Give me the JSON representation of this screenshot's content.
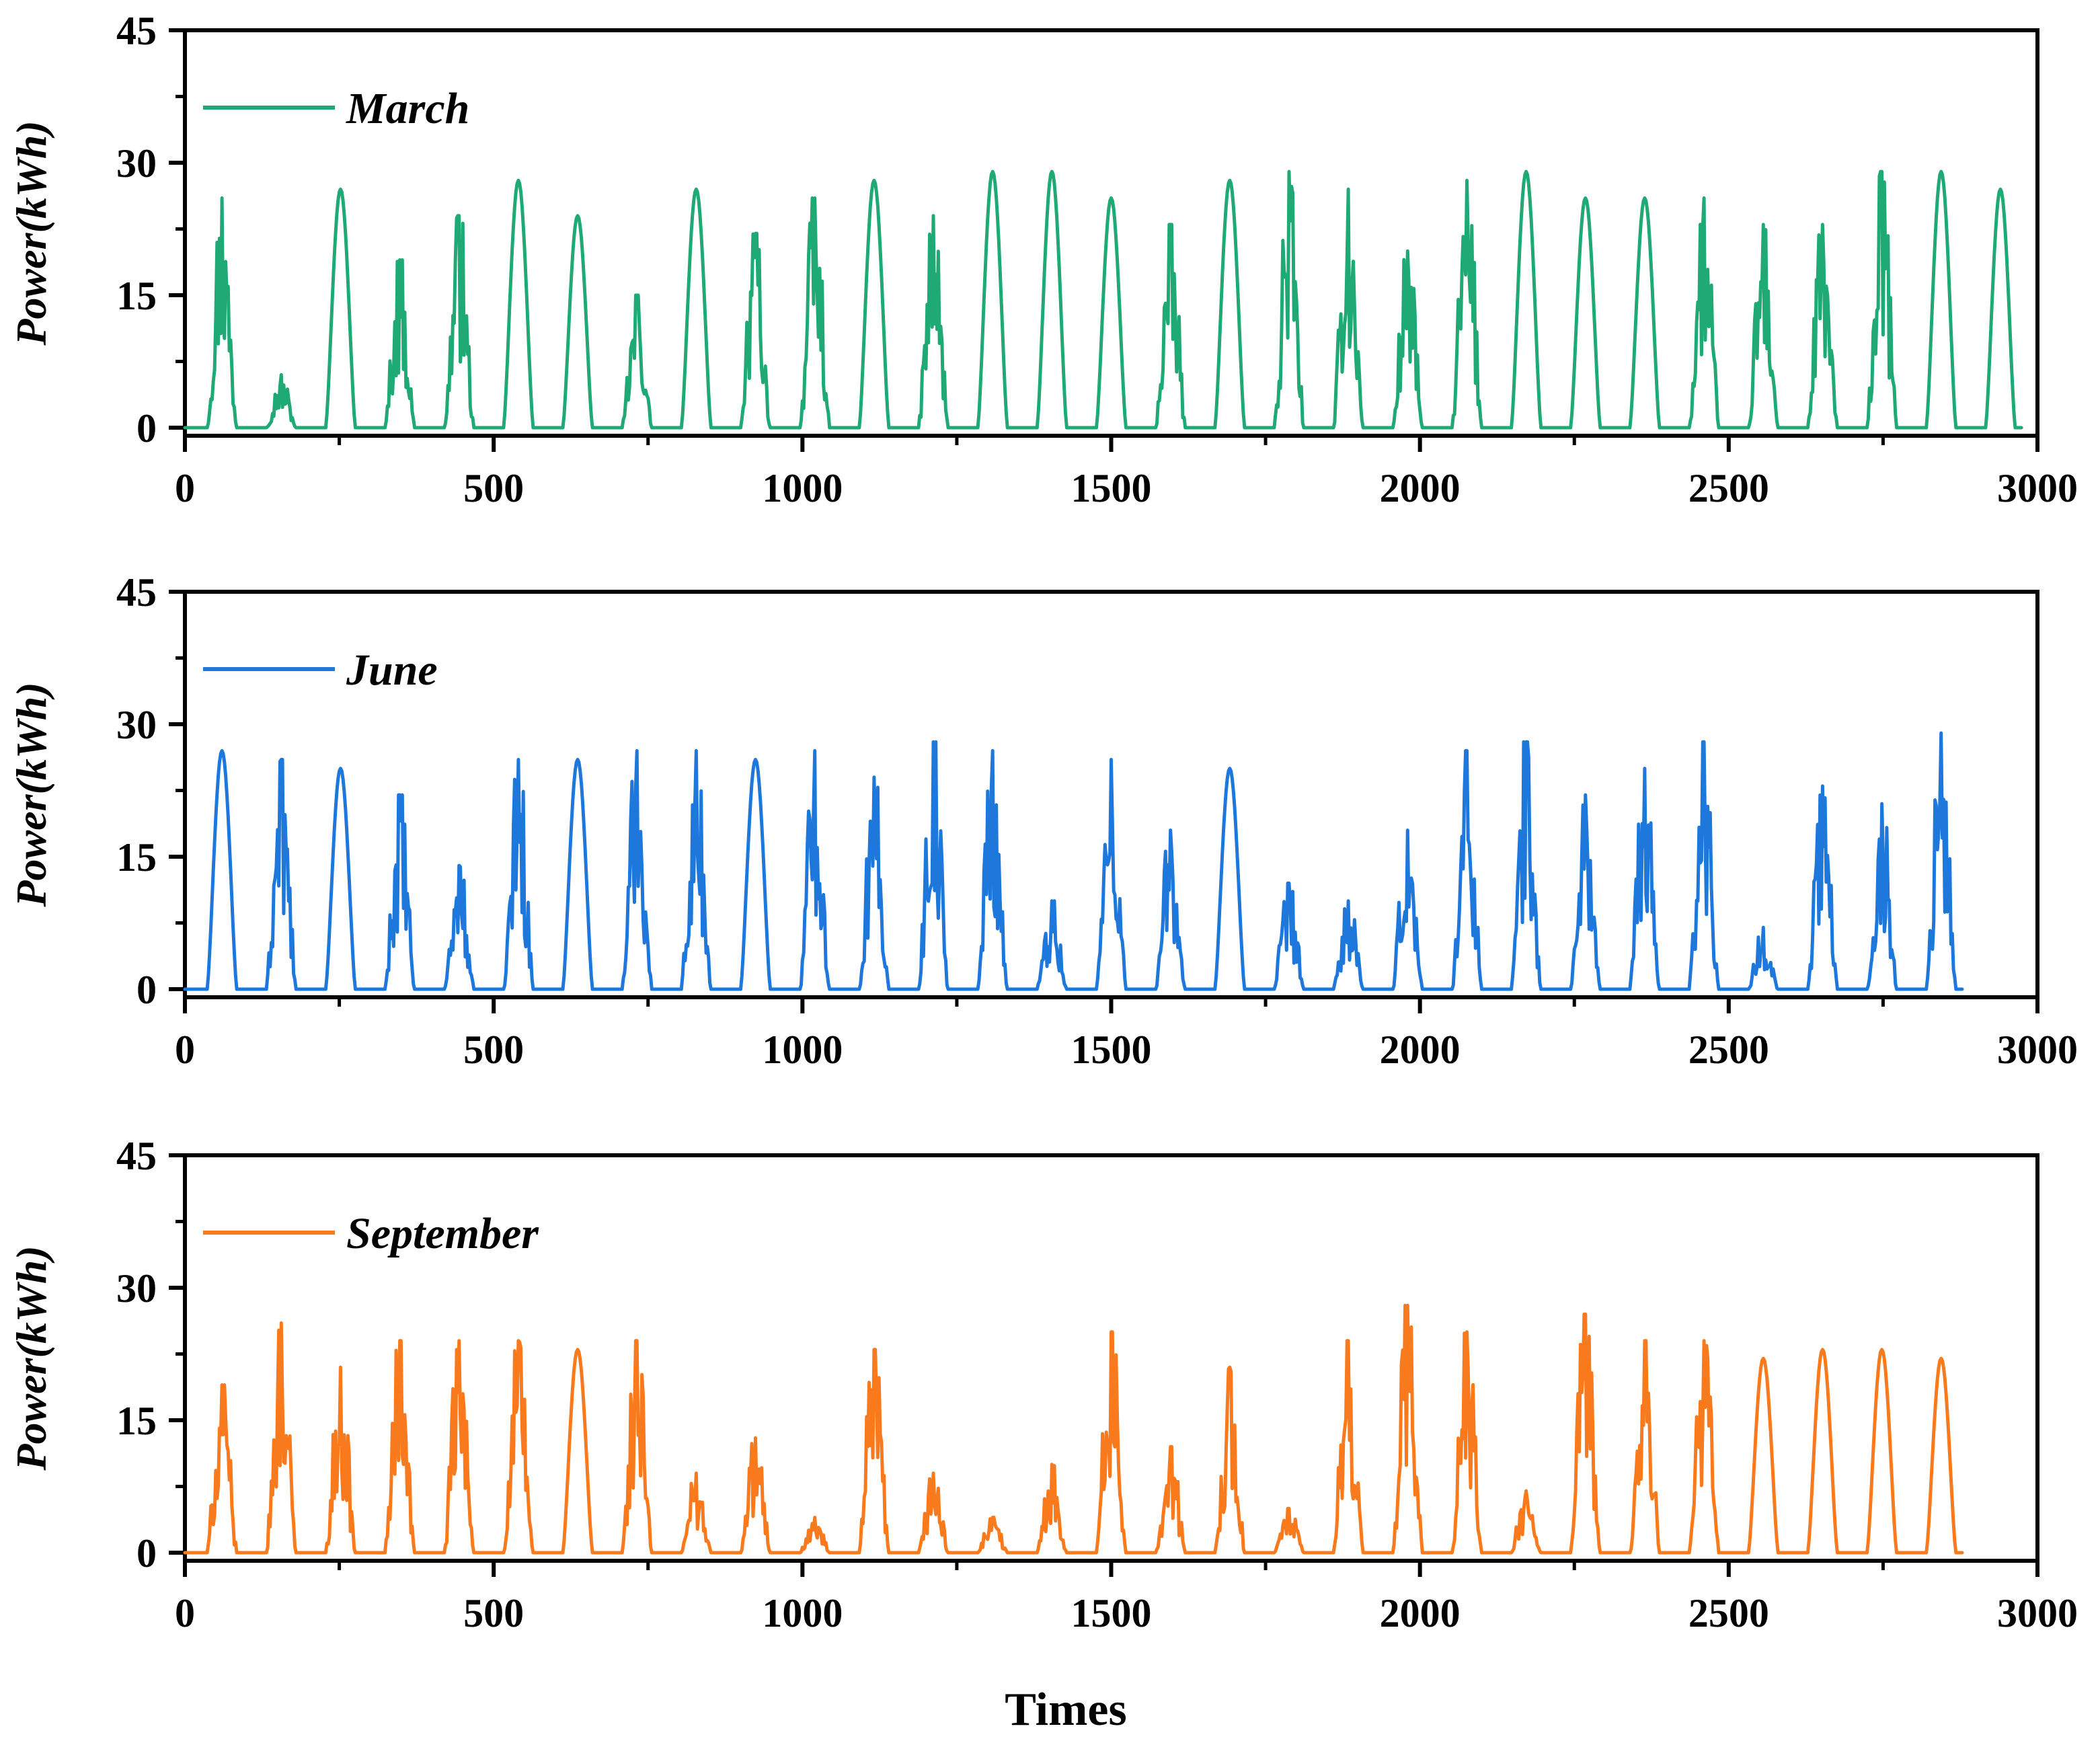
{
  "chart_data": [
    {
      "type": "line",
      "series": [
        {
          "name": "March",
          "color": "#1fa974",
          "day_peaks": [
            26,
            6,
            27,
            19,
            24,
            28,
            24,
            15,
            27,
            22,
            26,
            28,
            24,
            29,
            29,
            26,
            23,
            28,
            29,
            27,
            20,
            28,
            29,
            26,
            26,
            26,
            23,
            23,
            29,
            29,
            27
          ],
          "shape": [
            "spiky",
            "spiky",
            "smooth",
            "spiky",
            "spiky",
            "smooth",
            "smooth",
            "spiky",
            "smooth",
            "spiky",
            "spiky",
            "smooth",
            "spiky",
            "smooth",
            "smooth",
            "smooth",
            "spiky",
            "smooth",
            "spiky",
            "spiky",
            "spiky",
            "spiky",
            "smooth",
            "smooth",
            "smooth",
            "spiky",
            "spiky",
            "spiky",
            "spiky",
            "smooth",
            "smooth"
          ]
        }
      ],
      "xlim": [
        0,
        3000
      ],
      "ylim": [
        0,
        45
      ],
      "xticks": [
        "0",
        "500",
        "1000",
        "1500",
        "2000",
        "2500",
        "3000"
      ],
      "yticks": [
        "0",
        "15",
        "30",
        "45"
      ],
      "ylabel": "Power(kWh)",
      "xlabel": "",
      "x_end": 2980
    },
    {
      "type": "line",
      "series": [
        {
          "name": "June",
          "color": "#1e78dc",
          "day_peaks": [
            27,
            26,
            25,
            22,
            14,
            26,
            26,
            27,
            27,
            26,
            27,
            24,
            28,
            27,
            10,
            26,
            18,
            25,
            12,
            10,
            18,
            27,
            28,
            22,
            25,
            28,
            7,
            23,
            21,
            29
          ],
          "shape": [
            "smooth",
            "spiky",
            "smooth",
            "spiky",
            "spiky",
            "spiky",
            "smooth",
            "spiky",
            "spiky",
            "smooth",
            "spiky",
            "spiky",
            "spiky",
            "spiky",
            "spiky",
            "spiky",
            "spiky",
            "smooth",
            "spiky",
            "spiky",
            "spiky",
            "spiky",
            "spiky",
            "spiky",
            "spiky",
            "spiky",
            "spiky",
            "spiky",
            "spiky",
            "spiky"
          ]
        }
      ],
      "xlim": [
        0,
        3000
      ],
      "ylim": [
        0,
        45
      ],
      "xticks": [
        "0",
        "500",
        "1000",
        "1500",
        "2000",
        "2500",
        "3000"
      ],
      "yticks": [
        "0",
        "15",
        "30",
        "45"
      ],
      "ylabel": "Power(kWh)",
      "xlabel": "",
      "x_end": 2880
    },
    {
      "type": "line",
      "series": [
        {
          "name": "September",
          "color": "#f87a1c",
          "day_peaks": [
            19,
            26,
            21,
            24,
            24,
            24,
            23,
            24,
            9,
            13,
            4,
            23,
            9,
            4,
            10,
            25,
            12,
            21,
            5,
            24,
            28,
            25,
            7,
            27,
            24,
            24,
            22,
            23,
            23,
            22
          ],
          "shape": [
            "spiky",
            "spiky",
            "spiky",
            "spiky",
            "spiky",
            "spiky",
            "smooth",
            "spiky",
            "spiky",
            "spiky",
            "spiky",
            "spiky",
            "spiky",
            "spiky",
            "spiky",
            "spiky",
            "spiky",
            "spiky",
            "spiky",
            "spiky",
            "spiky",
            "spiky",
            "spiky",
            "spiky",
            "spiky",
            "spiky",
            "smooth",
            "smooth",
            "smooth",
            "smooth"
          ]
        }
      ],
      "xlim": [
        0,
        3000
      ],
      "ylim": [
        0,
        45
      ],
      "xticks": [
        "0",
        "500",
        "1000",
        "1500",
        "2000",
        "2500",
        "3000"
      ],
      "yticks": [
        "0",
        "15",
        "30",
        "45"
      ],
      "ylabel": "Power(kWh)",
      "xlabel": "Times",
      "x_end": 2880
    }
  ]
}
